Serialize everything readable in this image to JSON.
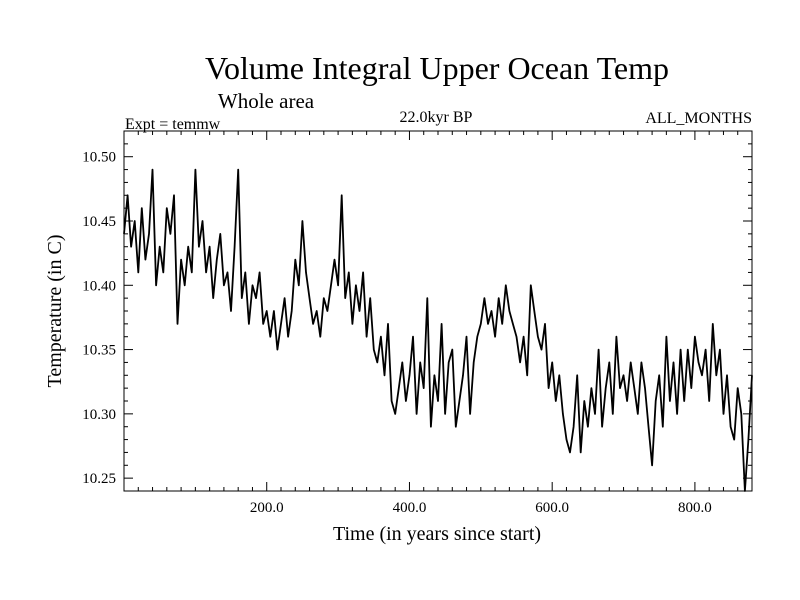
{
  "chart_data": {
    "type": "line",
    "title": "Volume Integral Upper Ocean Temp",
    "subtitle": "Whole area",
    "header_left": "Expt = temmw",
    "header_center": "22.0kyr BP",
    "header_right": "ALL_MONTHS",
    "xlabel": "Time (in years since start)",
    "ylabel": "Temperature (in C)",
    "xlim": [
      0,
      880
    ],
    "ylim": [
      10.24,
      10.52
    ],
    "x_ticks": [
      200,
      400,
      600,
      800
    ],
    "x_tick_labels": [
      "200.0",
      "400.0",
      "600.0",
      "800.0"
    ],
    "y_ticks": [
      10.25,
      10.3,
      10.35,
      10.4,
      10.45,
      10.5
    ],
    "y_tick_labels": [
      "10.25",
      "10.30",
      "10.35",
      "10.40",
      "10.45",
      "10.50"
    ],
    "series": [
      {
        "name": "temperature",
        "x": [
          0,
          5,
          10,
          15,
          20,
          25,
          30,
          35,
          40,
          45,
          50,
          55,
          60,
          65,
          70,
          75,
          80,
          85,
          90,
          95,
          100,
          105,
          110,
          115,
          120,
          125,
          130,
          135,
          140,
          145,
          150,
          155,
          160,
          165,
          170,
          175,
          180,
          185,
          190,
          195,
          200,
          205,
          210,
          215,
          220,
          225,
          230,
          235,
          240,
          245,
          250,
          255,
          260,
          265,
          270,
          275,
          280,
          285,
          290,
          295,
          300,
          305,
          310,
          315,
          320,
          325,
          330,
          335,
          340,
          345,
          350,
          355,
          360,
          365,
          370,
          375,
          380,
          385,
          390,
          395,
          400,
          405,
          410,
          415,
          420,
          425,
          430,
          435,
          440,
          445,
          450,
          455,
          460,
          465,
          470,
          475,
          480,
          485,
          490,
          495,
          500,
          505,
          510,
          515,
          520,
          525,
          530,
          535,
          540,
          545,
          550,
          555,
          560,
          565,
          570,
          575,
          580,
          585,
          590,
          595,
          600,
          605,
          610,
          615,
          620,
          625,
          630,
          635,
          640,
          645,
          650,
          655,
          660,
          665,
          670,
          675,
          680,
          685,
          690,
          695,
          700,
          705,
          710,
          715,
          720,
          725,
          730,
          735,
          740,
          745,
          750,
          755,
          760,
          765,
          770,
          775,
          780,
          785,
          790,
          795,
          800,
          805,
          810,
          815,
          820,
          825,
          830,
          835,
          840,
          845,
          850,
          855,
          860,
          865,
          870,
          875,
          880
        ],
        "values": [
          10.44,
          10.47,
          10.43,
          10.45,
          10.41,
          10.46,
          10.42,
          10.44,
          10.49,
          10.4,
          10.43,
          10.41,
          10.46,
          10.44,
          10.47,
          10.37,
          10.42,
          10.4,
          10.43,
          10.41,
          10.49,
          10.43,
          10.45,
          10.41,
          10.43,
          10.39,
          10.42,
          10.44,
          10.4,
          10.41,
          10.38,
          10.43,
          10.49,
          10.39,
          10.41,
          10.37,
          10.4,
          10.39,
          10.41,
          10.37,
          10.38,
          10.36,
          10.38,
          10.35,
          10.37,
          10.39,
          10.36,
          10.38,
          10.42,
          10.4,
          10.45,
          10.41,
          10.39,
          10.37,
          10.38,
          10.36,
          10.39,
          10.38,
          10.4,
          10.42,
          10.4,
          10.47,
          10.39,
          10.41,
          10.37,
          10.4,
          10.38,
          10.41,
          10.36,
          10.39,
          10.35,
          10.34,
          10.36,
          10.33,
          10.37,
          10.31,
          10.3,
          10.32,
          10.34,
          10.31,
          10.33,
          10.36,
          10.3,
          10.34,
          10.32,
          10.39,
          10.29,
          10.33,
          10.31,
          10.37,
          10.3,
          10.34,
          10.35,
          10.29,
          10.31,
          10.33,
          10.36,
          10.3,
          10.34,
          10.36,
          10.37,
          10.39,
          10.37,
          10.38,
          10.36,
          10.39,
          10.37,
          10.4,
          10.38,
          10.37,
          10.36,
          10.34,
          10.36,
          10.33,
          10.4,
          10.38,
          10.36,
          10.35,
          10.37,
          10.32,
          10.34,
          10.31,
          10.33,
          10.3,
          10.28,
          10.27,
          10.29,
          10.33,
          10.27,
          10.31,
          10.29,
          10.32,
          10.3,
          10.35,
          10.29,
          10.32,
          10.34,
          10.3,
          10.36,
          10.32,
          10.33,
          10.31,
          10.34,
          10.32,
          10.3,
          10.34,
          10.32,
          10.29,
          10.26,
          10.31,
          10.33,
          10.29,
          10.36,
          10.31,
          10.34,
          10.3,
          10.35,
          10.31,
          10.35,
          10.32,
          10.36,
          10.34,
          10.33,
          10.35,
          10.31,
          10.37,
          10.33,
          10.35,
          10.3,
          10.33,
          10.29,
          10.28,
          10.32,
          10.3,
          10.24,
          10.28,
          10.33
        ]
      }
    ]
  }
}
